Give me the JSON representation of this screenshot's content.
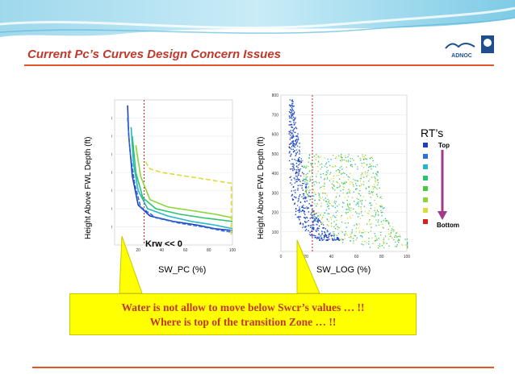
{
  "slide": {
    "title": "Current Pc’s Curves Design Concern Issues",
    "logo_text": "ADNOC",
    "colors": {
      "title": "#c0392b",
      "rule": "#e2572a",
      "callout_bg": "#ffff00",
      "callout_text": "#c0392b"
    }
  },
  "left_plot": {
    "ylabel": "Height Above FWL Depth (ft)",
    "xlabel": "SW_PC (%)",
    "annotation": "Krw << 0"
  },
  "right_plot": {
    "ylabel": "Height Above FWL Depth (ft)",
    "xlabel": "SW_LOG (%)"
  },
  "legend": {
    "title": "RT’s",
    "top_label": "Top",
    "bottom_label": "Bottom",
    "colors": [
      "#1f3fbf",
      "#2f6fd6",
      "#23b6c8",
      "#2ec46f",
      "#4cc83c",
      "#8ad63a",
      "#d9dc3a",
      "#d62020"
    ]
  },
  "callout": {
    "line1": "Water is not allow to move below Swcr’s values … !!",
    "line2": "Where is top of the transition Zone … !!"
  },
  "chart_data": [
    {
      "type": "line",
      "xlabel": "SW_PC (%)",
      "ylabel": "Height Above FWL Depth (ft)",
      "xlim": [
        0,
        100
      ],
      "ylim": [
        0,
        800
      ],
      "x_ticks": [
        "20",
        "40",
        "60",
        "80",
        "100"
      ],
      "y_ticks": [
        "100",
        "200",
        "300",
        "400",
        "500",
        "600",
        "700"
      ],
      "vertical_marker_x": 25,
      "series": [
        {
          "color": "#1f3fbf",
          "x": [
            11,
            12,
            15,
            20,
            30,
            50,
            70,
            85,
            100
          ],
          "y": [
            770,
            600,
            380,
            220,
            160,
            130,
            110,
            90,
            80
          ]
        },
        {
          "color": "#2f6fd6",
          "x": [
            11,
            13,
            17,
            22,
            35,
            55,
            75,
            90,
            100
          ],
          "y": [
            700,
            520,
            340,
            210,
            150,
            120,
            100,
            80,
            70
          ]
        },
        {
          "color": "#23b6c8",
          "x": [
            14,
            16,
            20,
            28,
            45,
            65,
            85,
            100
          ],
          "y": [
            650,
            450,
            300,
            200,
            160,
            130,
            110,
            90
          ]
        },
        {
          "color": "#2ec46f",
          "x": [
            15,
            18,
            24,
            35,
            55,
            75,
            100
          ],
          "y": [
            600,
            400,
            260,
            200,
            170,
            150,
            130
          ]
        },
        {
          "color": "#8ad63a",
          "x": [
            18,
            22,
            30,
            45,
            65,
            85,
            100
          ],
          "y": [
            550,
            380,
            250,
            210,
            190,
            170,
            150
          ]
        },
        {
          "color": "#d9dc3a",
          "x": [
            26,
            30,
            40,
            60,
            80,
            99,
            99
          ],
          "y": [
            460,
            420,
            400,
            380,
            360,
            340,
            50
          ]
        }
      ]
    },
    {
      "type": "scatter",
      "xlabel": "SW_LOG (%)",
      "ylabel": "Height Above FWL Depth (ft)",
      "xlim": [
        0,
        100
      ],
      "ylim": [
        0,
        800
      ],
      "x_ticks": [
        "0",
        "20",
        "40",
        "60",
        "80",
        "100"
      ],
      "y_ticks": [
        "100",
        "200",
        "300",
        "400",
        "500",
        "600",
        "700",
        "800"
      ],
      "vertical_marker_x": 25,
      "series": [
        {
          "name": "dense cloud",
          "color": "#1f3fbf",
          "x": [
            3,
            5,
            8,
            10,
            12,
            15,
            20,
            25,
            30,
            40
          ],
          "y": [
            780,
            650,
            520,
            400,
            330,
            280,
            230,
            190,
            160,
            120
          ]
        },
        {
          "name": "spread cloud",
          "color": "#2ec46f",
          "x": [
            10,
            20,
            30,
            45,
            60,
            75,
            90,
            100
          ],
          "y": [
            450,
            380,
            320,
            260,
            200,
            150,
            100,
            60
          ]
        }
      ]
    }
  ]
}
